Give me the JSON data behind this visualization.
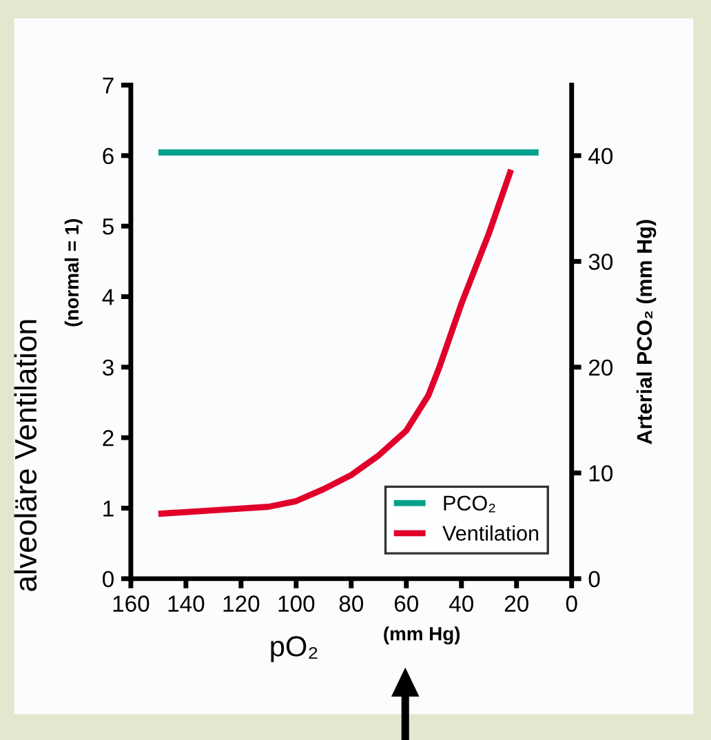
{
  "chart_data": {
    "type": "line",
    "xlabel": "pO₂",
    "ylabel": "alveoläre Ventilation",
    "y2label": "Arterial PCO₂ (mm Hg)",
    "annotations": [
      "(normal = 1)",
      "(mm Hg)"
    ],
    "series": [
      {
        "name": "PCO₂",
        "color": "#00a08a",
        "axis": "y2",
        "x": [
          150,
          12
        ],
        "values": [
          40.3,
          40.3
        ]
      },
      {
        "name": "Ventilation",
        "color": "#e0002a",
        "axis": "y",
        "x": [
          150,
          130,
          110,
          100,
          90,
          80,
          70,
          60,
          52,
          48,
          40,
          30,
          22
        ],
        "values": [
          0.92,
          0.97,
          1.02,
          1.1,
          1.27,
          1.47,
          1.75,
          2.1,
          2.6,
          3.0,
          3.9,
          4.9,
          5.8
        ]
      }
    ],
    "xlim": [
      160,
      0
    ],
    "xticks": [
      160,
      140,
      120,
      100,
      80,
      60,
      40,
      20,
      0
    ],
    "ylim": [
      0,
      7
    ],
    "yticks": [
      0,
      1,
      2,
      3,
      4,
      5,
      6,
      7
    ],
    "y2lim": [
      0,
      46.67
    ],
    "y2ticks": [
      0,
      10,
      20,
      30,
      40
    ],
    "grid": false,
    "legend": "bottom right",
    "marker": "none",
    "line_style": "solid"
  }
}
